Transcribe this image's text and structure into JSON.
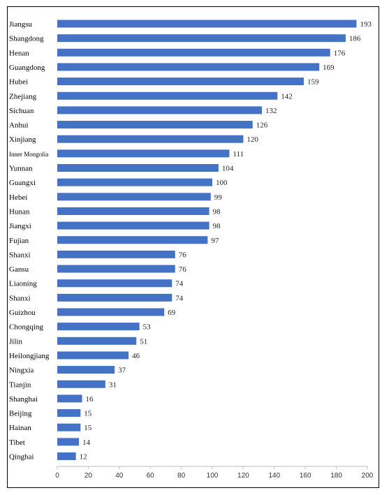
{
  "chart_data": {
    "type": "bar",
    "orientation": "horizontal",
    "title": "",
    "xlabel": "",
    "ylabel": "",
    "xlim": [
      0,
      200
    ],
    "x_ticks": [
      0,
      20,
      40,
      60,
      80,
      100,
      120,
      140,
      160,
      180,
      200
    ],
    "grid": false,
    "legend": "none",
    "bar_color": "#4472C4",
    "categories": [
      "Jiangsu",
      "Shangdong",
      "Henan",
      "Guangdong",
      "Hubei",
      "Zhejiang",
      "Sichuan",
      "Anhui",
      "Xinjiang",
      "Inner Mongolia",
      "Yunnan",
      "Guangxi",
      "Hebei",
      "Hunan",
      "Jiangxi",
      "Fujian",
      "Shanxi",
      "Gansu",
      "Liaoning",
      "Shanxi",
      "Guizhou",
      "Chongqing",
      "Jilin",
      "Heilongjiang",
      "Ningxia",
      "Tianjin",
      "Shanghai",
      "Beijing",
      "Hainan",
      "Tibet",
      "Qinghai"
    ],
    "values": [
      193,
      186,
      176,
      169,
      159,
      142,
      132,
      126,
      120,
      111,
      104,
      100,
      99,
      98,
      98,
      97,
      76,
      76,
      74,
      74,
      69,
      53,
      51,
      46,
      37,
      31,
      16,
      15,
      15,
      14,
      12
    ]
  }
}
